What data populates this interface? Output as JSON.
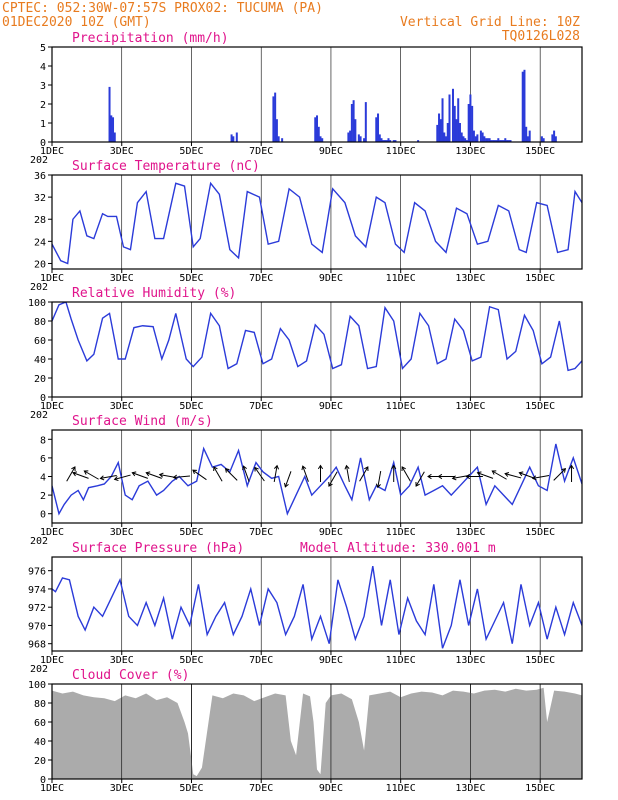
{
  "header": {
    "line1_left": "CPTEC:  052:30W-07:57S  PROX02: TUCUMA (PA)",
    "line2_left": "01DEC2020 10Z (GMT)",
    "line2_right": "Vertical Grid Line: 10Z",
    "line3_right": "TQ0126L028"
  },
  "x_axis": {
    "day_ticks": [
      "1DEC",
      "3DEC",
      "5DEC",
      "7DEC",
      "9DEC",
      "11DEC",
      "13DEC",
      "15DEC"
    ],
    "day_offsets": [
      0,
      2,
      4,
      6,
      8,
      10,
      12,
      14
    ],
    "range_days": [
      0,
      15.2
    ],
    "year_label": "202"
  },
  "chart_data": [
    {
      "id": "precip",
      "type": "bar",
      "title": "Precipitation (mm/h)",
      "ylim": [
        0,
        5
      ],
      "yticks": [
        "0",
        "1",
        "2",
        "3",
        "4",
        "5"
      ],
      "color": "#2b3bd9",
      "x_days": [
        1.65,
        1.7,
        1.75,
        1.8,
        5.15,
        5.2,
        5.3,
        6.35,
        6.4,
        6.45,
        6.5,
        6.6,
        7.55,
        7.6,
        7.65,
        7.7,
        7.75,
        8.5,
        8.55,
        8.6,
        8.65,
        8.7,
        8.8,
        8.85,
        8.95,
        9.0,
        9.3,
        9.35,
        9.4,
        9.45,
        9.5,
        9.55,
        9.6,
        9.65,
        9.7,
        9.8,
        9.85,
        10.5,
        11.05,
        11.1,
        11.15,
        11.2,
        11.25,
        11.3,
        11.35,
        11.4,
        11.5,
        11.55,
        11.6,
        11.65,
        11.7,
        11.75,
        11.8,
        11.85,
        11.9,
        11.95,
        12.0,
        12.05,
        12.1,
        12.15,
        12.2,
        12.3,
        12.35,
        12.4,
        12.45,
        12.5,
        12.55,
        12.6,
        12.65,
        12.7,
        12.75,
        12.8,
        12.85,
        12.9,
        12.95,
        13.0,
        13.05,
        13.1,
        13.15,
        13.5,
        13.55,
        13.6,
        13.65,
        13.7,
        14.05,
        14.1,
        14.35,
        14.4,
        14.45
      ],
      "values": [
        2.9,
        1.4,
        1.3,
        0.5,
        0.4,
        0.3,
        0.5,
        2.4,
        2.6,
        1.2,
        0.3,
        0.2,
        1.3,
        1.4,
        0.8,
        0.3,
        0.2,
        0.5,
        0.6,
        2.0,
        2.2,
        1.2,
        0.4,
        0.3,
        0.2,
        2.1,
        1.3,
        1.5,
        0.4,
        0.2,
        0.1,
        0.1,
        0.1,
        0.2,
        0.1,
        0.1,
        0.1,
        0.1,
        0.9,
        1.5,
        1.2,
        2.3,
        0.5,
        0.3,
        1.0,
        2.5,
        2.8,
        1.9,
        1.2,
        2.3,
        1.0,
        0.5,
        0.3,
        0.2,
        0.1,
        2.0,
        2.5,
        1.9,
        0.6,
        0.3,
        0.4,
        0.6,
        0.5,
        0.3,
        0.2,
        0.2,
        0.2,
        0.1,
        0.1,
        0.1,
        0.1,
        0.2,
        0.1,
        0.1,
        0.1,
        0.2,
        0.1,
        0.1,
        0.1,
        3.7,
        3.8,
        0.8,
        0.3,
        0.6,
        0.3,
        0.2,
        0.4,
        0.6,
        0.3
      ],
      "xlabel": "",
      "ylabel": ""
    },
    {
      "id": "temp",
      "type": "line",
      "title": "Surface Temperature (nC)",
      "ylim": [
        19,
        36
      ],
      "yticks": [
        "20",
        "24",
        "28",
        "32",
        "36"
      ],
      "ytick_values": [
        20,
        24,
        28,
        32,
        36
      ],
      "color": "#2b3bd9",
      "x_days": [
        0,
        0.25,
        0.45,
        0.6,
        0.8,
        1.0,
        1.2,
        1.45,
        1.6,
        1.85,
        2.05,
        2.25,
        2.45,
        2.7,
        2.95,
        3.2,
        3.55,
        3.8,
        4.05,
        4.25,
        4.55,
        4.8,
        5.1,
        5.35,
        5.6,
        5.95,
        6.2,
        6.5,
        6.8,
        7.1,
        7.45,
        7.75,
        8.05,
        8.4,
        8.7,
        9.0,
        9.3,
        9.55,
        9.85,
        10.1,
        10.4,
        10.7,
        11.0,
        11.3,
        11.6,
        11.9,
        12.2,
        12.5,
        12.8,
        13.1,
        13.4,
        13.6,
        13.9,
        14.2,
        14.5,
        14.8,
        15.0,
        15.2
      ],
      "values": [
        23.5,
        20.5,
        20,
        28,
        29.5,
        25,
        24.5,
        29,
        28.5,
        28.5,
        23,
        22.5,
        31,
        33,
        24.5,
        24.5,
        34.5,
        34,
        23,
        24.5,
        34.5,
        32.5,
        22.5,
        21,
        33,
        32,
        23.5,
        24,
        33.5,
        32,
        23.5,
        22,
        33.5,
        31,
        25,
        23,
        32,
        31,
        23.5,
        22,
        31,
        29.5,
        24,
        22,
        30,
        29,
        23.5,
        24,
        30.5,
        29.5,
        22.5,
        22,
        31,
        30.5,
        22,
        22.5,
        33,
        31
      ],
      "xlabel": "",
      "ylabel": ""
    },
    {
      "id": "rh",
      "type": "line",
      "title": "Relative Humidity (%)",
      "ylim": [
        0,
        100
      ],
      "yticks": [
        "0",
        "20",
        "40",
        "60",
        "80",
        "100"
      ],
      "ytick_values": [
        0,
        20,
        40,
        60,
        80,
        100
      ],
      "color": "#2b3bd9",
      "x_days": [
        0,
        0.2,
        0.4,
        0.55,
        0.75,
        1.0,
        1.2,
        1.45,
        1.65,
        1.9,
        2.1,
        2.35,
        2.6,
        2.9,
        3.15,
        3.35,
        3.55,
        3.85,
        4.05,
        4.3,
        4.55,
        4.8,
        5.05,
        5.3,
        5.55,
        5.8,
        6.05,
        6.3,
        6.55,
        6.8,
        7.05,
        7.3,
        7.55,
        7.8,
        8.05,
        8.3,
        8.55,
        8.8,
        9.05,
        9.3,
        9.55,
        9.8,
        10.05,
        10.3,
        10.55,
        10.8,
        11.05,
        11.3,
        11.55,
        11.8,
        12.05,
        12.3,
        12.55,
        12.8,
        13.05,
        13.3,
        13.55,
        13.8,
        14.05,
        14.3,
        14.55,
        14.8,
        15.0,
        15.2
      ],
      "values": [
        80,
        97,
        100,
        82,
        60,
        38,
        45,
        83,
        88,
        40,
        40,
        73,
        75,
        74,
        40,
        60,
        88,
        40,
        32,
        42,
        88,
        75,
        30,
        35,
        70,
        68,
        35,
        40,
        72,
        60,
        32,
        38,
        76,
        66,
        30,
        34,
        85,
        75,
        30,
        32,
        94,
        80,
        30,
        40,
        88,
        75,
        35,
        40,
        82,
        70,
        38,
        42,
        95,
        92,
        40,
        48,
        86,
        70,
        35,
        42,
        80,
        28,
        30,
        38
      ],
      "xlabel": "",
      "ylabel": ""
    },
    {
      "id": "wind",
      "type": "line",
      "title": "Surface Wind (m/s)",
      "ylim": [
        -1,
        9
      ],
      "yticks": [
        "0",
        "2",
        "4",
        "6",
        "8"
      ],
      "ytick_values": [
        0,
        2,
        4,
        6,
        8
      ],
      "color": "#2b3bd9",
      "x_days": [
        0,
        0.2,
        0.35,
        0.55,
        0.75,
        0.9,
        1.05,
        1.3,
        1.5,
        1.7,
        1.9,
        2.1,
        2.3,
        2.5,
        2.75,
        3.0,
        3.2,
        3.45,
        3.65,
        3.9,
        4.15,
        4.35,
        4.6,
        4.85,
        5.1,
        5.35,
        5.6,
        5.85,
        6.05,
        6.3,
        6.5,
        6.75,
        7.0,
        7.25,
        7.45,
        7.7,
        7.95,
        8.15,
        8.4,
        8.6,
        8.85,
        9.1,
        9.3,
        9.55,
        9.8,
        10.0,
        10.25,
        10.5,
        10.7,
        10.95,
        11.2,
        11.45,
        11.7,
        11.95,
        12.2,
        12.45,
        12.7,
        12.95,
        13.2,
        13.45,
        13.7,
        13.95,
        14.2,
        14.45,
        14.7,
        14.95,
        15.2
      ],
      "values": [
        3,
        0,
        1,
        2,
        2.5,
        1.5,
        2.8,
        3,
        3.2,
        4,
        5.5,
        2,
        1.5,
        3,
        3.5,
        2,
        2.5,
        3.5,
        4,
        3,
        3.5,
        7,
        5,
        5.3,
        4.5,
        6.8,
        3,
        5.5,
        4.5,
        3.8,
        4,
        0,
        2,
        4,
        2,
        3,
        4,
        5,
        3,
        1.5,
        6,
        1.5,
        3,
        2.5,
        5.5,
        2,
        3,
        5,
        2,
        2.5,
        3,
        2,
        3,
        4,
        5,
        1,
        3,
        2,
        1,
        3,
        5,
        3,
        2.5,
        7.5,
        3.5,
        6,
        3.2
      ],
      "arrows": [
        {
          "x": 0.5,
          "angle": -60
        },
        {
          "x": 0.9,
          "angle": 200
        },
        {
          "x": 1.2,
          "angle": 210
        },
        {
          "x": 1.7,
          "angle": 170
        },
        {
          "x": 2.1,
          "angle": 165
        },
        {
          "x": 2.6,
          "angle": 200
        },
        {
          "x": 3.0,
          "angle": 200
        },
        {
          "x": 3.4,
          "angle": 190
        },
        {
          "x": 3.8,
          "angle": 175
        },
        {
          "x": 4.3,
          "angle": 215
        },
        {
          "x": 4.8,
          "angle": 240
        },
        {
          "x": 5.2,
          "angle": 225
        },
        {
          "x": 5.6,
          "angle": 250
        },
        {
          "x": 6.0,
          "angle": 235
        },
        {
          "x": 6.4,
          "angle": -80
        },
        {
          "x": 6.8,
          "angle": 110
        },
        {
          "x": 7.3,
          "angle": -110
        },
        {
          "x": 7.7,
          "angle": -90
        },
        {
          "x": 8.1,
          "angle": 120
        },
        {
          "x": 8.5,
          "angle": -100
        },
        {
          "x": 8.9,
          "angle": -60
        },
        {
          "x": 9.4,
          "angle": 100
        },
        {
          "x": 9.8,
          "angle": -90
        },
        {
          "x": 10.2,
          "angle": -120
        },
        {
          "x": 10.6,
          "angle": 120
        },
        {
          "x": 11.1,
          "angle": 180
        },
        {
          "x": 11.4,
          "angle": 180
        },
        {
          "x": 11.8,
          "angle": 170
        },
        {
          "x": 12.2,
          "angle": 180
        },
        {
          "x": 12.5,
          "angle": 200
        },
        {
          "x": 12.9,
          "angle": 210
        },
        {
          "x": 13.3,
          "angle": 195
        },
        {
          "x": 13.7,
          "angle": 200
        },
        {
          "x": 14.1,
          "angle": 170
        },
        {
          "x": 14.5,
          "angle": -45
        },
        {
          "x": 14.9,
          "angle": -90
        }
      ],
      "xlabel": "",
      "ylabel": ""
    },
    {
      "id": "pressure",
      "type": "line",
      "title": "Surface Pressure (hPa)",
      "subtitle": "Model Altitude: 330.001 m",
      "ylim": [
        967.2,
        977.5
      ],
      "yticks": [
        "968",
        "970",
        "972",
        "974",
        "976"
      ],
      "ytick_values": [
        968,
        970,
        972,
        974,
        976
      ],
      "color": "#2b3bd9",
      "x_days": [
        0,
        0.1,
        0.3,
        0.5,
        0.75,
        0.95,
        1.2,
        1.45,
        1.7,
        1.95,
        2.2,
        2.45,
        2.7,
        2.95,
        3.2,
        3.45,
        3.7,
        3.95,
        4.2,
        4.45,
        4.7,
        4.95,
        5.2,
        5.45,
        5.7,
        5.95,
        6.2,
        6.45,
        6.7,
        6.95,
        7.2,
        7.45,
        7.7,
        7.95,
        8.2,
        8.45,
        8.7,
        8.95,
        9.2,
        9.45,
        9.7,
        9.95,
        10.2,
        10.45,
        10.7,
        10.95,
        11.2,
        11.45,
        11.7,
        11.95,
        12.2,
        12.45,
        12.7,
        12.95,
        13.2,
        13.45,
        13.7,
        13.95,
        14.2,
        14.45,
        14.7,
        14.95,
        15.2
      ],
      "values": [
        974,
        973.7,
        975.2,
        975,
        971,
        969.5,
        972,
        971,
        973,
        975,
        971,
        970,
        972.5,
        970,
        973,
        968.5,
        972,
        970,
        974.5,
        969,
        971,
        972.5,
        969,
        971,
        974,
        970,
        974,
        972.5,
        969,
        971,
        974.5,
        968.5,
        971,
        968,
        975,
        972,
        968.5,
        971,
        976.5,
        970,
        975,
        969,
        973,
        970.5,
        969,
        974.5,
        967.5,
        970,
        975,
        970,
        974,
        968.5,
        970.5,
        972.5,
        968,
        974.5,
        970,
        972.5,
        968.5,
        972,
        969,
        972.5,
        970
      ],
      "xlabel": "",
      "ylabel": ""
    },
    {
      "id": "cloud",
      "type": "area",
      "title": "Cloud Cover (%)",
      "ylim": [
        0,
        100
      ],
      "yticks": [
        "0",
        "20",
        "40",
        "60",
        "80",
        "100"
      ],
      "ytick_values": [
        0,
        20,
        40,
        60,
        80,
        100
      ],
      "color": "#ababab",
      "x_days": [
        0,
        0.3,
        0.6,
        0.9,
        1.2,
        1.5,
        1.8,
        2.1,
        2.4,
        2.7,
        3.0,
        3.3,
        3.6,
        3.8,
        3.9,
        4.0,
        4.05,
        4.15,
        4.3,
        4.6,
        4.9,
        5.2,
        5.5,
        5.8,
        6.1,
        6.4,
        6.7,
        6.85,
        7.0,
        7.2,
        7.4,
        7.5,
        7.6,
        7.7,
        7.85,
        8.0,
        8.3,
        8.6,
        8.8,
        8.95,
        9.1,
        9.4,
        9.7,
        10.0,
        10.3,
        10.6,
        10.9,
        11.2,
        11.5,
        11.8,
        12.1,
        12.4,
        12.7,
        13.0,
        13.3,
        13.6,
        13.9,
        14.1,
        14.2,
        14.4,
        14.7,
        15.0,
        15.2
      ],
      "values": [
        93,
        90,
        92,
        88,
        86,
        85,
        82,
        88,
        85,
        90,
        83,
        86,
        80,
        60,
        48,
        20,
        5,
        3,
        12,
        88,
        85,
        90,
        88,
        82,
        86,
        90,
        88,
        40,
        25,
        90,
        87,
        60,
        10,
        5,
        80,
        88,
        90,
        84,
        60,
        30,
        88,
        90,
        92,
        86,
        90,
        92,
        91,
        88,
        93,
        92,
        90,
        93,
        94,
        92,
        95,
        93,
        94,
        96,
        60,
        93,
        92,
        90,
        88
      ],
      "xlabel": "",
      "ylabel": ""
    }
  ]
}
